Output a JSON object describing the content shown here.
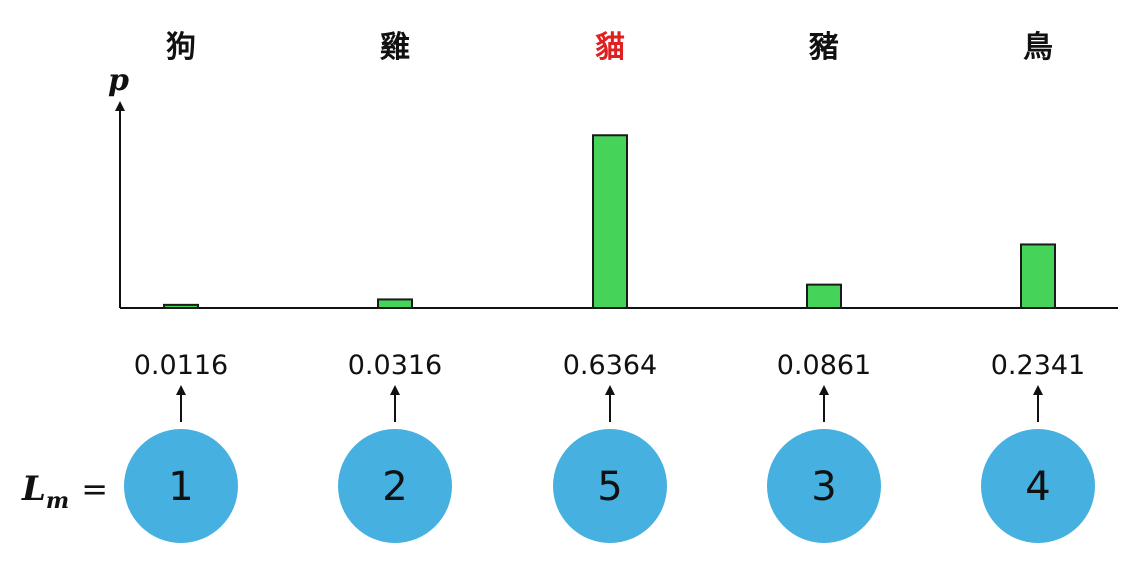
{
  "chart_data": {
    "type": "bar",
    "categories": [
      "狗",
      "雞",
      "貓",
      "豬",
      "鳥"
    ],
    "values": [
      0.0116,
      0.0316,
      0.6364,
      0.0861,
      0.2341
    ],
    "value_labels": [
      "0.0116",
      "0.0316",
      "0.6364",
      "0.0861",
      "0.2341"
    ],
    "highlight_index": 2,
    "ylabel": "p",
    "ylim": [
      0,
      0.7
    ],
    "grid": false,
    "ranks": [
      "1",
      "2",
      "5",
      "3",
      "4"
    ],
    "rank_label_main": "L",
    "rank_label_sub": "m",
    "rank_label_eq": "="
  },
  "colors": {
    "bar_fill": "#46d35a",
    "bar_stroke": "#1b1b1b",
    "axis": "#111111",
    "highlight_text": "#e02020",
    "normal_text": "#111111",
    "circle_fill": "#46b0e0",
    "arrow": "#111111"
  }
}
